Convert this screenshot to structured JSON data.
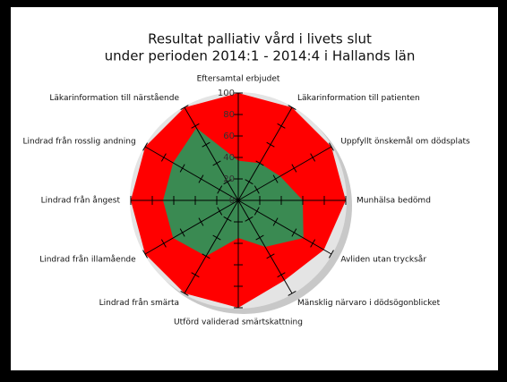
{
  "chart_data": {
    "type": "radar",
    "title": "Resultat palliativ vård i livets slut",
    "subtitle": "under perioden 2014:1 - 2014:4 i Hallands län",
    "categories": [
      "Eftersamtal erbjudet",
      "Läkarinformation till patienten",
      "Uppfyllt önskemål om dödsplats",
      "Munhälsa bedömd",
      "Avliden utan trycksår",
      "Mänsklig närvaro i dödsögonblicket",
      "Utförd validerad smärtskattning",
      "Lindrad från smärta",
      "Lindrad från illamående",
      "Lindrad från ångest",
      "Lindrad från rosslig andning",
      "Läkarinformation till närstående"
    ],
    "series": [
      {
        "color": "#ff0000",
        "values": [
          100,
          100,
          100,
          100,
          92,
          86,
          100,
          100,
          100,
          100,
          100,
          100
        ]
      },
      {
        "color": "#3a8a52",
        "values": [
          37,
          40,
          45,
          60,
          70,
          50,
          35,
          60,
          70,
          70,
          70,
          78
        ]
      }
    ],
    "ylim": [
      0,
      100
    ],
    "yticks": [
      0,
      20,
      40,
      60,
      80,
      100
    ]
  }
}
